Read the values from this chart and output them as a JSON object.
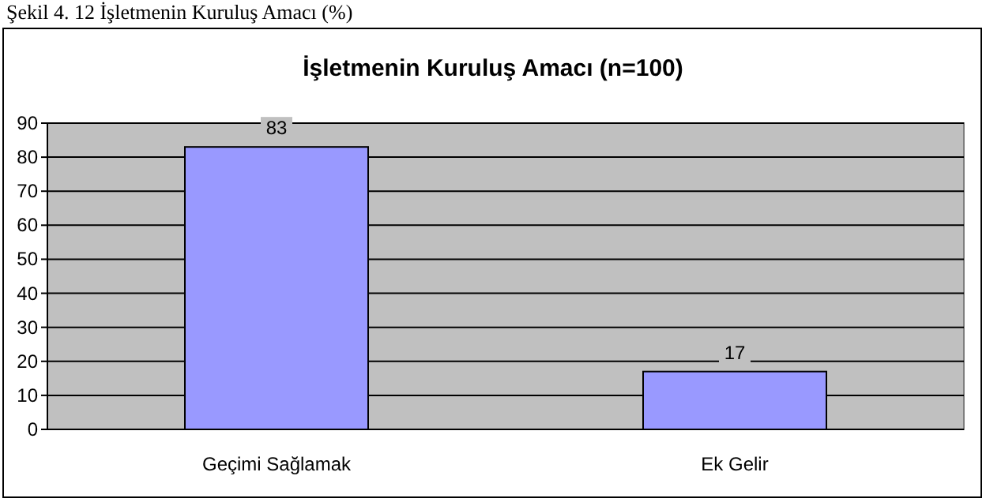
{
  "chart_data": {
    "type": "bar",
    "title": "İşletmenin Kuruluş Amacı (n=100)",
    "annotations": [
      "Şekil 4. 12 İşletmenin Kuruluş Amacı (%)"
    ],
    "categories": [
      "Geçimi Sağlamak",
      "Ek Gelir"
    ],
    "values": [
      83,
      17
    ],
    "color": "#9999ff",
    "ylim": [
      0,
      90
    ],
    "yticks": [
      0,
      10,
      20,
      30,
      40,
      50,
      60,
      70,
      80,
      90
    ],
    "grid": "y",
    "data_labels": true
  }
}
